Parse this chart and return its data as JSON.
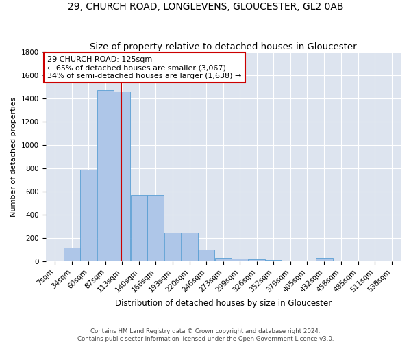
{
  "title1": "29, CHURCH ROAD, LONGLEVENS, GLOUCESTER, GL2 0AB",
  "title2": "Size of property relative to detached houses in Gloucester",
  "xlabel": "Distribution of detached houses by size in Gloucester",
  "ylabel": "Number of detached properties",
  "footer1": "Contains HM Land Registry data © Crown copyright and database right 2024.",
  "footer2": "Contains public sector information licensed under the Open Government Licence v3.0.",
  "annotation_line1": "29 CHURCH ROAD: 125sqm",
  "annotation_line2": "← 65% of detached houses are smaller (3,067)",
  "annotation_line3": "34% of semi-detached houses are larger (1,638) →",
  "property_size": 125,
  "bar_values": [
    5,
    120,
    790,
    1470,
    1460,
    570,
    570,
    245,
    245,
    100,
    30,
    25,
    20,
    15,
    0,
    0,
    30,
    0,
    0,
    0,
    0
  ],
  "bin_edges": [
    7,
    34,
    60,
    87,
    113,
    140,
    166,
    193,
    220,
    246,
    273,
    299,
    326,
    352,
    379,
    405,
    432,
    458,
    485,
    511,
    538
  ],
  "bin_width": 27,
  "bar_color": "#aec6e8",
  "bar_edge_color": "#5a9fd4",
  "marker_color": "#cc0000",
  "background_color": "#dde4ef",
  "ylim": [
    0,
    1800
  ],
  "yticks": [
    0,
    200,
    400,
    600,
    800,
    1000,
    1200,
    1400,
    1600,
    1800
  ],
  "title1_fontsize": 10,
  "title2_fontsize": 9.5,
  "xlabel_fontsize": 8.5,
  "ylabel_fontsize": 8,
  "tick_fontsize": 7.5,
  "annot_fontsize": 8
}
